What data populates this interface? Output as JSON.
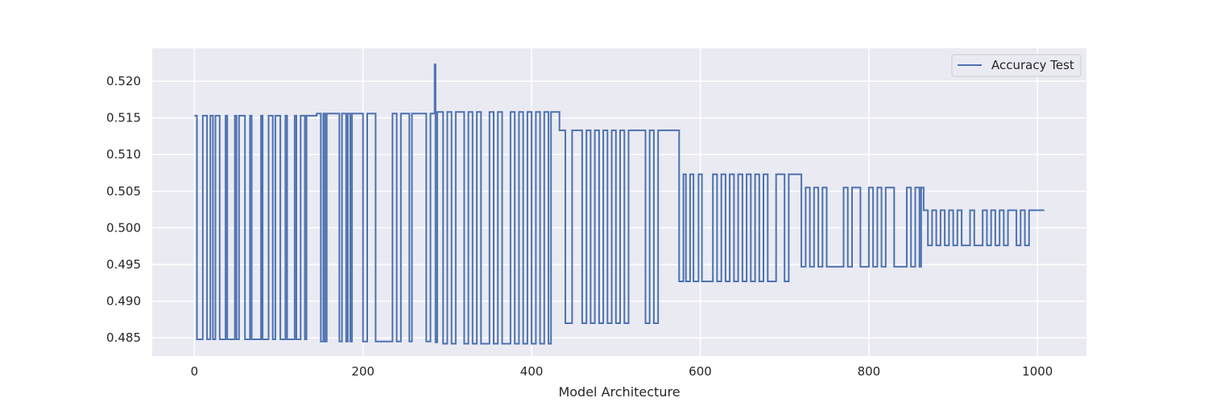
{
  "chart_data": {
    "type": "line",
    "title": "",
    "xlabel": "Model Architecture",
    "ylabel": "",
    "xlim": [
      -50,
      1058
    ],
    "ylim": [
      0.4825,
      0.5245
    ],
    "x_ticks": [
      0,
      200,
      400,
      600,
      800,
      1000
    ],
    "y_ticks": [
      0.485,
      0.49,
      0.495,
      0.5,
      0.505,
      0.51,
      0.515,
      0.52
    ],
    "y_tick_labels": [
      "0.485",
      "0.490",
      "0.495",
      "0.500",
      "0.505",
      "0.510",
      "0.515",
      "0.520"
    ],
    "grid": true,
    "legend_position": "top-right",
    "background": "#eaeaf2",
    "line_color": "#4c72b0",
    "series": [
      {
        "name": "Accuracy Test",
        "step": true,
        "points": [
          [
            0,
            0.5153
          ],
          [
            3,
            0.4848
          ],
          [
            10,
            0.5153
          ],
          [
            15,
            0.4848
          ],
          [
            19,
            0.5153
          ],
          [
            22,
            0.4848
          ],
          [
            25,
            0.5153
          ],
          [
            30,
            0.4848
          ],
          [
            37,
            0.5153
          ],
          [
            39,
            0.4848
          ],
          [
            48,
            0.5153
          ],
          [
            50,
            0.4848
          ],
          [
            53,
            0.5153
          ],
          [
            60,
            0.4848
          ],
          [
            66,
            0.5153
          ],
          [
            68,
            0.4848
          ],
          [
            79,
            0.5153
          ],
          [
            81,
            0.4848
          ],
          [
            88,
            0.5153
          ],
          [
            93,
            0.4848
          ],
          [
            96,
            0.5153
          ],
          [
            102,
            0.4848
          ],
          [
            108,
            0.5153
          ],
          [
            110,
            0.4848
          ],
          [
            119,
            0.5153
          ],
          [
            121,
            0.4848
          ],
          [
            126,
            0.5153
          ],
          [
            131,
            0.4848
          ],
          [
            133,
            0.5153
          ],
          [
            145,
            0.5156
          ],
          [
            150,
            0.4845
          ],
          [
            153,
            0.5156
          ],
          [
            155,
            0.4845
          ],
          [
            157,
            0.5156
          ],
          [
            172,
            0.4845
          ],
          [
            175,
            0.5156
          ],
          [
            180,
            0.4845
          ],
          [
            182,
            0.5156
          ],
          [
            185,
            0.4845
          ],
          [
            187,
            0.5156
          ],
          [
            191,
            0.5156
          ],
          [
            200,
            0.4845
          ],
          [
            205,
            0.5156
          ],
          [
            215,
            0.4845
          ],
          [
            235,
            0.5156
          ],
          [
            240,
            0.4845
          ],
          [
            245,
            0.5156
          ],
          [
            255,
            0.4845
          ],
          [
            258,
            0.5156
          ],
          [
            275,
            0.4845
          ],
          [
            280,
            0.5156
          ],
          [
            285,
            0.5223
          ],
          [
            286,
            0.4844
          ],
          [
            288,
            0.5158
          ],
          [
            295,
            0.4842
          ],
          [
            300,
            0.5158
          ],
          [
            305,
            0.4842
          ],
          [
            310,
            0.5158
          ],
          [
            320,
            0.4842
          ],
          [
            325,
            0.5158
          ],
          [
            330,
            0.4842
          ],
          [
            335,
            0.5158
          ],
          [
            340,
            0.4842
          ],
          [
            350,
            0.5158
          ],
          [
            355,
            0.4842
          ],
          [
            360,
            0.5158
          ],
          [
            365,
            0.4842
          ],
          [
            375,
            0.5158
          ],
          [
            380,
            0.4842
          ],
          [
            385,
            0.5158
          ],
          [
            390,
            0.4842
          ],
          [
            395,
            0.5158
          ],
          [
            400,
            0.4842
          ],
          [
            405,
            0.5158
          ],
          [
            410,
            0.4842
          ],
          [
            415,
            0.5158
          ],
          [
            420,
            0.4842
          ],
          [
            423,
            0.5158
          ],
          [
            433,
            0.5133
          ],
          [
            440,
            0.487
          ],
          [
            448,
            0.5133
          ],
          [
            460,
            0.487
          ],
          [
            465,
            0.5133
          ],
          [
            470,
            0.487
          ],
          [
            475,
            0.5133
          ],
          [
            480,
            0.487
          ],
          [
            485,
            0.5133
          ],
          [
            490,
            0.487
          ],
          [
            495,
            0.5133
          ],
          [
            500,
            0.487
          ],
          [
            505,
            0.5133
          ],
          [
            510,
            0.487
          ],
          [
            515,
            0.5133
          ],
          [
            535,
            0.487
          ],
          [
            540,
            0.5133
          ],
          [
            545,
            0.487
          ],
          [
            550,
            0.5133
          ],
          [
            575,
            0.4927
          ],
          [
            580,
            0.5073
          ],
          [
            583,
            0.4927
          ],
          [
            588,
            0.5073
          ],
          [
            592,
            0.4927
          ],
          [
            598,
            0.5073
          ],
          [
            602,
            0.4927
          ],
          [
            615,
            0.5073
          ],
          [
            620,
            0.4927
          ],
          [
            625,
            0.5073
          ],
          [
            630,
            0.4927
          ],
          [
            635,
            0.5073
          ],
          [
            640,
            0.4927
          ],
          [
            645,
            0.5073
          ],
          [
            650,
            0.4927
          ],
          [
            655,
            0.5073
          ],
          [
            660,
            0.4927
          ],
          [
            665,
            0.5073
          ],
          [
            670,
            0.4927
          ],
          [
            675,
            0.5073
          ],
          [
            680,
            0.4927
          ],
          [
            690,
            0.5073
          ],
          [
            700,
            0.4927
          ],
          [
            705,
            0.5073
          ],
          [
            720,
            0.4947
          ],
          [
            725,
            0.5055
          ],
          [
            730,
            0.4947
          ],
          [
            735,
            0.5055
          ],
          [
            740,
            0.4947
          ],
          [
            745,
            0.5055
          ],
          [
            750,
            0.4947
          ],
          [
            770,
            0.5055
          ],
          [
            775,
            0.4947
          ],
          [
            780,
            0.5055
          ],
          [
            790,
            0.4947
          ],
          [
            800,
            0.5055
          ],
          [
            805,
            0.4947
          ],
          [
            810,
            0.5055
          ],
          [
            815,
            0.4947
          ],
          [
            820,
            0.5055
          ],
          [
            830,
            0.4947
          ],
          [
            845,
            0.5055
          ],
          [
            850,
            0.4947
          ],
          [
            855,
            0.5055
          ],
          [
            860,
            0.4947
          ],
          [
            862,
            0.5055
          ],
          [
            865,
            0.5024
          ],
          [
            870,
            0.4976
          ],
          [
            875,
            0.5024
          ],
          [
            880,
            0.4976
          ],
          [
            885,
            0.5024
          ],
          [
            890,
            0.4976
          ],
          [
            895,
            0.5024
          ],
          [
            900,
            0.4976
          ],
          [
            905,
            0.5024
          ],
          [
            910,
            0.4976
          ],
          [
            920,
            0.5024
          ],
          [
            925,
            0.4976
          ],
          [
            935,
            0.5024
          ],
          [
            940,
            0.4976
          ],
          [
            945,
            0.5024
          ],
          [
            950,
            0.4976
          ],
          [
            955,
            0.5024
          ],
          [
            960,
            0.4976
          ],
          [
            965,
            0.5024
          ],
          [
            975,
            0.4976
          ],
          [
            980,
            0.5024
          ],
          [
            985,
            0.4976
          ],
          [
            990,
            0.5024
          ],
          [
            1008,
            0.5024
          ]
        ]
      }
    ]
  }
}
